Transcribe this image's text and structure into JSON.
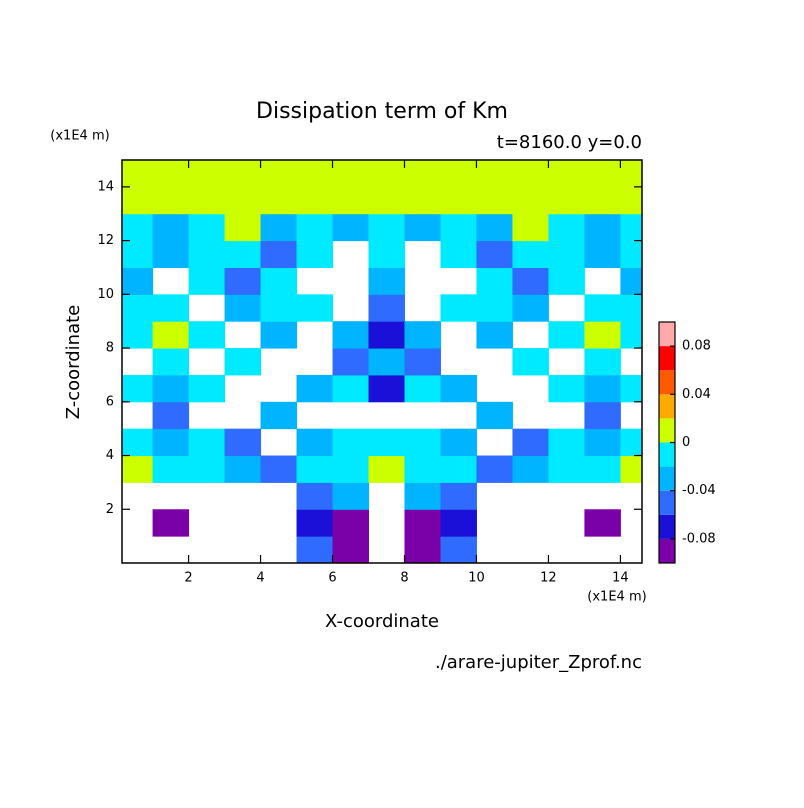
{
  "chart_data": {
    "type": "contour",
    "title": "Dissipation term of Km",
    "subtitle": "t=8160.0 y=0.0",
    "x_unit": "(x1E4 m)",
    "y_unit": "(x1E4 m)",
    "xlabel": "X-coordinate",
    "ylabel": "Z-coordinate",
    "footer": "./arare-jupiter_Zprof.nc",
    "xlim": [
      0.15,
      14.6
    ],
    "ylim": [
      0,
      15
    ],
    "xticks": [
      2,
      4,
      6,
      8,
      10,
      12,
      14
    ],
    "yticks": [
      2,
      4,
      6,
      8,
      10,
      12,
      14
    ],
    "x": [
      0.5,
      1.5,
      2.5,
      3.5,
      4.5,
      5.5,
      6.5,
      7.5,
      8.5,
      9.5,
      10.5,
      11.5,
      12.5,
      13.5,
      14.5
    ],
    "y": [
      0.5,
      1.5,
      2.5,
      3.5,
      4.5,
      5.5,
      6.5,
      7.5,
      8.5,
      9.5,
      10.5,
      11.5,
      12.5,
      13.5,
      14.5
    ],
    "z": [
      [
        null,
        null,
        null,
        null,
        null,
        -0.05,
        -0.09,
        null,
        -0.09,
        -0.05,
        null,
        null,
        null,
        null,
        null
      ],
      [
        null,
        -0.09,
        null,
        null,
        null,
        -0.07,
        -0.09,
        null,
        -0.09,
        -0.07,
        null,
        null,
        null,
        -0.09,
        null
      ],
      [
        null,
        null,
        null,
        null,
        null,
        -0.05,
        -0.03,
        null,
        -0.03,
        -0.05,
        null,
        null,
        null,
        null,
        null
      ],
      [
        0.01,
        -0.01,
        -0.01,
        -0.03,
        -0.05,
        -0.01,
        -0.01,
        0.01,
        -0.01,
        -0.01,
        -0.05,
        -0.03,
        -0.01,
        -0.01,
        0.01
      ],
      [
        -0.01,
        -0.03,
        -0.01,
        -0.05,
        null,
        -0.03,
        -0.01,
        -0.01,
        -0.01,
        -0.03,
        null,
        -0.05,
        -0.01,
        -0.03,
        -0.01
      ],
      [
        null,
        -0.05,
        null,
        null,
        -0.03,
        null,
        null,
        null,
        null,
        null,
        -0.03,
        null,
        null,
        -0.05,
        null
      ],
      [
        -0.01,
        -0.03,
        -0.01,
        null,
        null,
        -0.03,
        -0.01,
        -0.07,
        -0.01,
        -0.03,
        null,
        null,
        -0.01,
        -0.03,
        -0.01
      ],
      [
        null,
        -0.01,
        null,
        -0.01,
        null,
        null,
        -0.05,
        -0.03,
        -0.05,
        null,
        null,
        -0.01,
        null,
        -0.01,
        null
      ],
      [
        -0.01,
        0.01,
        -0.01,
        null,
        -0.03,
        null,
        -0.03,
        -0.07,
        -0.03,
        null,
        -0.03,
        null,
        -0.01,
        0.01,
        -0.01
      ],
      [
        -0.01,
        -0.01,
        null,
        -0.03,
        -0.01,
        -0.01,
        null,
        -0.05,
        null,
        -0.01,
        -0.01,
        -0.03,
        null,
        -0.01,
        -0.01
      ],
      [
        -0.03,
        null,
        -0.01,
        -0.05,
        -0.01,
        null,
        null,
        -0.03,
        null,
        null,
        -0.01,
        -0.05,
        -0.01,
        null,
        -0.03
      ],
      [
        -0.01,
        -0.03,
        -0.01,
        -0.01,
        -0.05,
        -0.01,
        null,
        -0.01,
        null,
        -0.01,
        -0.05,
        -0.01,
        -0.01,
        -0.03,
        -0.01
      ],
      [
        -0.01,
        -0.03,
        -0.01,
        0.01,
        -0.03,
        -0.01,
        -0.03,
        -0.01,
        -0.03,
        -0.01,
        -0.03,
        0.01,
        -0.01,
        -0.03,
        -0.01
      ],
      [
        0.01,
        0.01,
        0.01,
        0.01,
        0.01,
        0.01,
        0.01,
        0.01,
        0.01,
        0.01,
        0.01,
        0.01,
        0.01,
        0.01,
        0.01
      ],
      [
        0.01,
        0.01,
        0.01,
        0.01,
        0.01,
        0.01,
        0.01,
        0.01,
        0.01,
        0.01,
        0.01,
        0.01,
        0.01,
        0.01,
        0.01
      ]
    ],
    "levels": [
      -0.1,
      -0.08,
      -0.06,
      -0.04,
      -0.02,
      0,
      0.02,
      0.04,
      0.06,
      0.08,
      0.1
    ],
    "colors": [
      "#7a00a8",
      "#1a10d8",
      "#2f6bff",
      "#00b4ff",
      "#00eaff",
      "#ccff00",
      "#ffaa00",
      "#ff5a00",
      "#ff0000",
      "#ffaaaa"
    ],
    "colorbar_ticks": [
      -0.08,
      -0.04,
      0,
      0.04,
      0.08
    ]
  }
}
